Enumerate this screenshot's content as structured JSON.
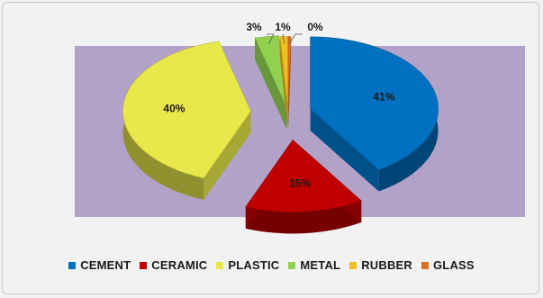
{
  "chart_data": {
    "type": "pie",
    "title": "",
    "categories": [
      "CEMENT",
      "CERAMIC",
      "PLASTIC",
      "METAL",
      "RUBBER",
      "GLASS"
    ],
    "values": [
      41,
      15,
      40,
      3,
      1,
      0
    ],
    "labels": [
      "41%",
      "15%",
      "40%",
      "3%",
      "1%",
      "0%"
    ],
    "colors": [
      "#0070c0",
      "#c00000",
      "#e8e84a",
      "#92d050",
      "#f0c020",
      "#e07020"
    ],
    "legend_position": "bottom",
    "exploded": true,
    "style": "3d"
  },
  "plot_area_color": "#b3a2c7"
}
